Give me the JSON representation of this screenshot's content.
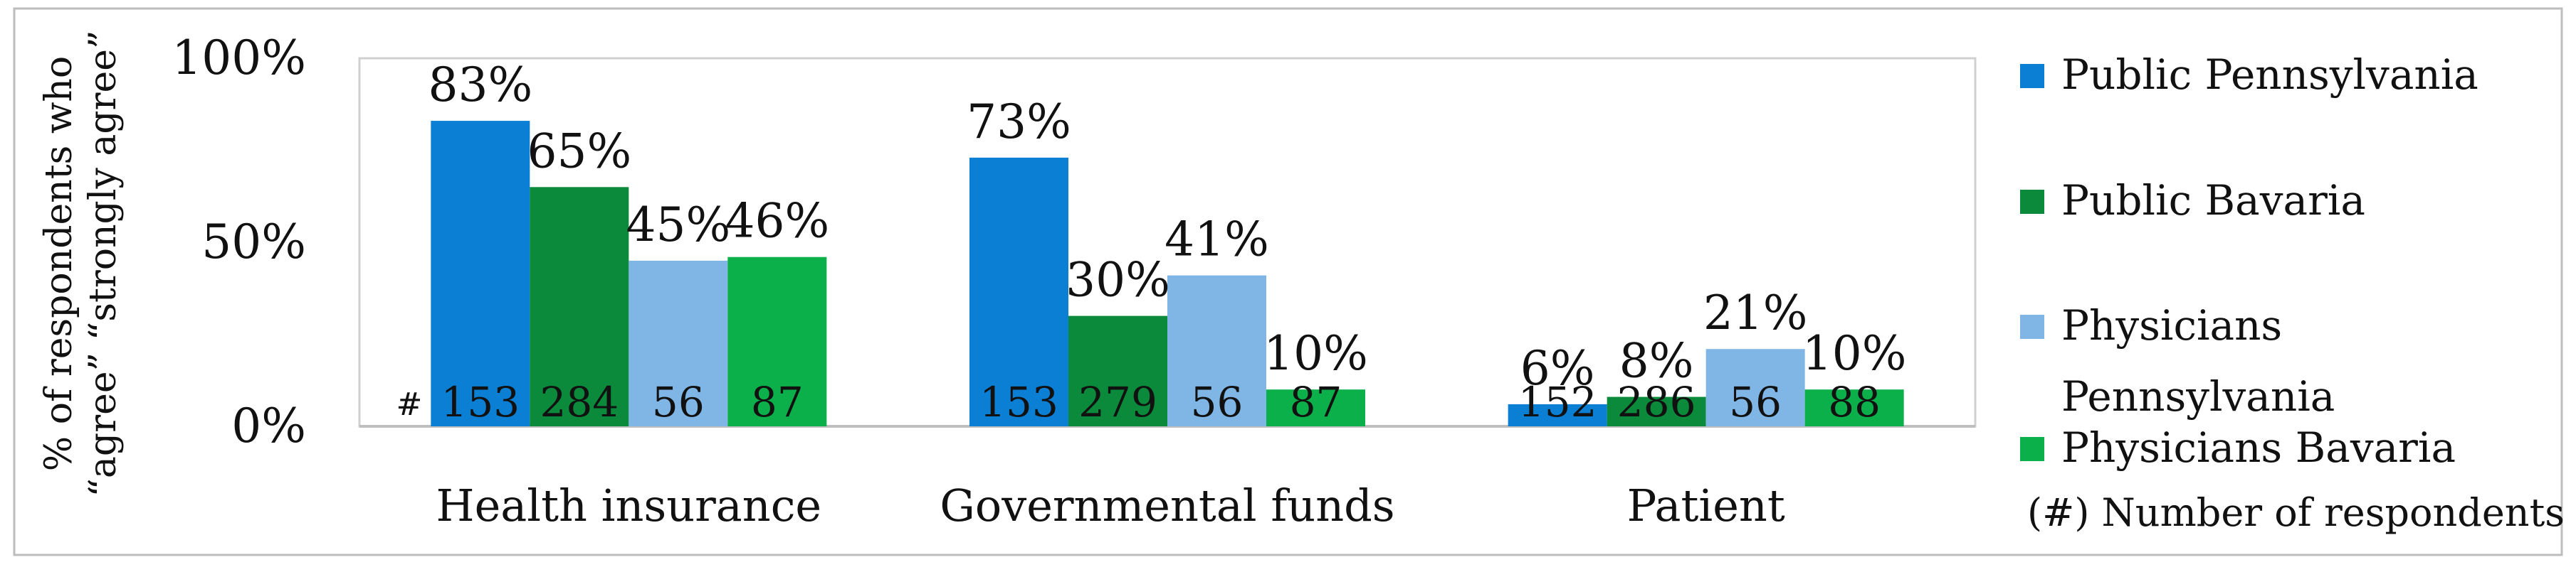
{
  "chart_data": {
    "type": "bar",
    "categories": [
      "Health insurance",
      "Governmental funds",
      "Patient"
    ],
    "series": [
      {
        "name": "Public Pennsylvania",
        "values": [
          83,
          73,
          6
        ],
        "labels": [
          "83%",
          "73%",
          "6%"
        ],
        "counts": [
          "153",
          "153",
          "152"
        ],
        "color": "#0a7fd4"
      },
      {
        "name": "Public Bavaria",
        "values": [
          65,
          30,
          8
        ],
        "labels": [
          "65%",
          "30%",
          "8%"
        ],
        "counts": [
          "284",
          "279",
          "286"
        ],
        "color": "#0a8a3a"
      },
      {
        "name": "Physicians Pennsylvania",
        "legend_lines": [
          "Physicians",
          "Pennsylvania"
        ],
        "values": [
          45,
          41,
          21
        ],
        "labels": [
          "45%",
          "41%",
          "21%"
        ],
        "counts": [
          "56",
          "56",
          "56"
        ],
        "color": "#7fb6e6"
      },
      {
        "name": "Physicians Bavaria",
        "values": [
          46,
          10,
          10
        ],
        "labels": [
          "46%",
          "10%",
          "10%"
        ],
        "counts": [
          "87",
          "87",
          "88"
        ],
        "color": "#0cb04a"
      }
    ],
    "ylabel_lines": [
      "% of respondents who",
      "“agree” “strongly agree”"
    ],
    "yticks": [
      {
        "value": 0,
        "label": "0%"
      },
      {
        "value": 50,
        "label": "50%"
      },
      {
        "value": 100,
        "label": "100%"
      }
    ],
    "ylim": [
      0,
      100
    ],
    "count_marker": "#",
    "legend_note": "(#) Number of respondents",
    "legend_position": "right",
    "grid": false
  }
}
